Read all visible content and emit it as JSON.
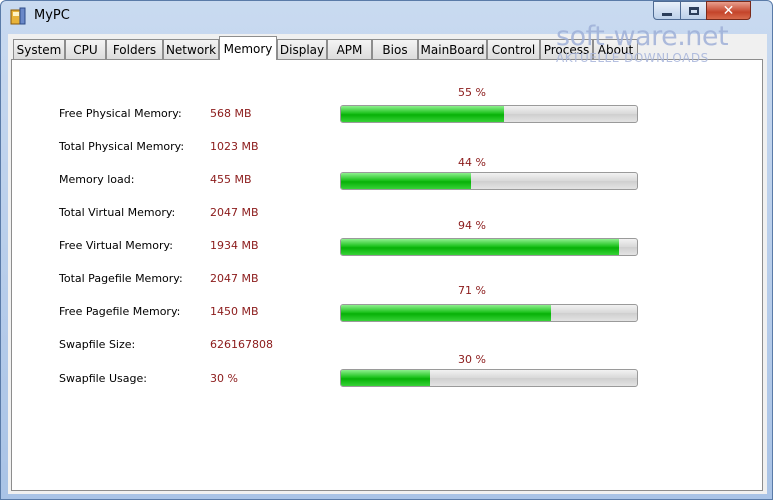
{
  "window": {
    "title": "MyPC"
  },
  "tabs": [
    {
      "label": "System"
    },
    {
      "label": "CPU"
    },
    {
      "label": "Folders"
    },
    {
      "label": "Network"
    },
    {
      "label": "Memory",
      "active": true
    },
    {
      "label": "Display"
    },
    {
      "label": "APM"
    },
    {
      "label": "Bios"
    },
    {
      "label": "MainBoard"
    },
    {
      "label": "Control"
    },
    {
      "label": "Process"
    },
    {
      "label": "About"
    }
  ],
  "memory": {
    "rows": [
      {
        "label": "Free Physical Memory:",
        "value": "568 MB"
      },
      {
        "label": "Total Physical Memory:",
        "value": "1023 MB"
      },
      {
        "label": "Memory load:",
        "value": "455 MB"
      },
      {
        "label": "Total Virtual Memory:",
        "value": "2047 MB"
      },
      {
        "label": "Free Virtual Memory:",
        "value": "1934 MB"
      },
      {
        "label": "Total Pagefile Memory:",
        "value": "2047 MB"
      },
      {
        "label": "Free Pagefile Memory:",
        "value": "1450 MB"
      },
      {
        "label": "Swapfile Size:",
        "value": "626167808"
      },
      {
        "label": "Swapfile Usage:",
        "value": "30 %"
      }
    ],
    "bars": [
      {
        "label": "55 %",
        "percent": 55
      },
      {
        "label": "44 %",
        "percent": 44
      },
      {
        "label": "94 %",
        "percent": 94
      },
      {
        "label": "71 %",
        "percent": 71
      },
      {
        "label": "30 %",
        "percent": 30
      }
    ]
  },
  "watermark": {
    "text": "soft-ware.net",
    "subtitle": "AKTUELLE DOWNLOADS"
  },
  "colors": {
    "bar_fill": "#1fc31f",
    "value_text": "#8b1a1a"
  }
}
